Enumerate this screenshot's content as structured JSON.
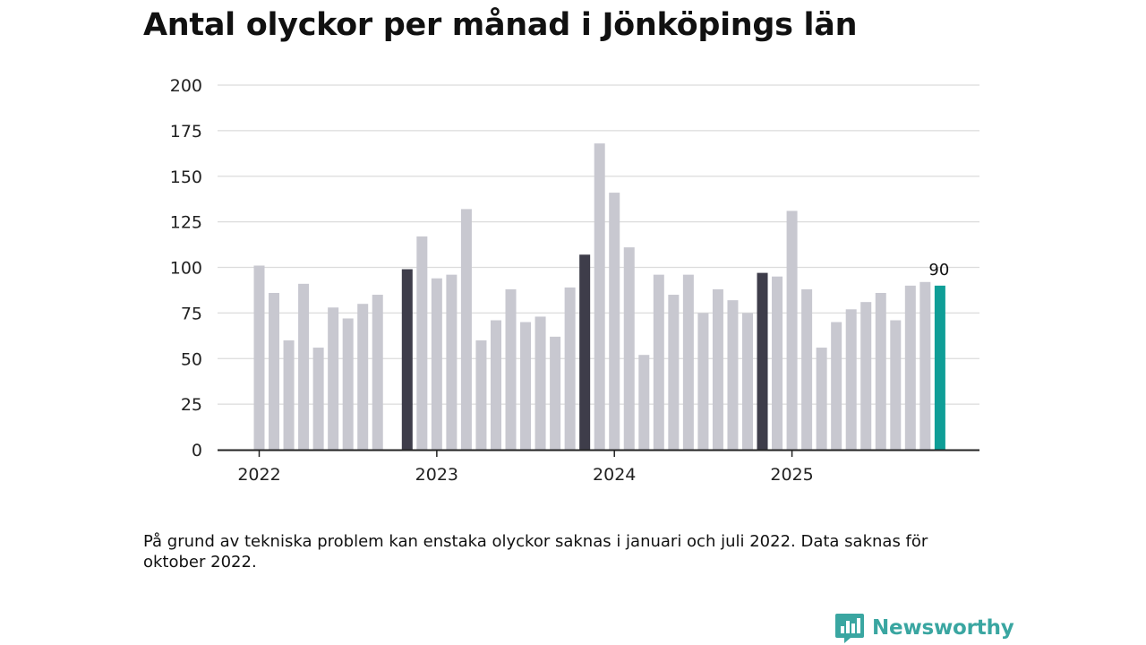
{
  "title": "Antal olyckor per månad i Jönköpings län",
  "footnote": "På grund av tekniska problem kan enstaka olyckor saknas i januari och juli 2022. Data saknas för oktober 2022.",
  "brand": {
    "name": "Newsworthy",
    "icon": "newsworthy-logo-icon",
    "color": "#3aa6a1"
  },
  "colors": {
    "default": "#c8c8d0",
    "november": "#3e3d4a",
    "latest": "#0f9e97",
    "grid": "#dcdcdc",
    "axis": "#222222"
  },
  "chart_data": {
    "type": "bar",
    "title": "Antal olyckor per månad i Jönköpings län",
    "xlabel": "",
    "ylabel": "",
    "ylim": [
      0,
      200
    ],
    "yticks": [
      "0",
      "25",
      "50",
      "75",
      "100",
      "125",
      "150",
      "175",
      "200"
    ],
    "xticks": [
      "2022",
      "2023",
      "2024",
      "2025"
    ],
    "grid": true,
    "series": [
      {
        "name": "Antal olyckor",
        "categories": [
          "2022-01",
          "2022-02",
          "2022-03",
          "2022-04",
          "2022-05",
          "2022-06",
          "2022-07",
          "2022-08",
          "2022-09",
          "2022-10",
          "2022-11",
          "2022-12",
          "2023-01",
          "2023-02",
          "2023-03",
          "2023-04",
          "2023-05",
          "2023-06",
          "2023-07",
          "2023-08",
          "2023-09",
          "2023-10",
          "2023-11",
          "2023-12",
          "2024-01",
          "2024-02",
          "2024-03",
          "2024-04",
          "2024-05",
          "2024-06",
          "2024-07",
          "2024-08",
          "2024-09",
          "2024-10",
          "2024-11",
          "2024-12",
          "2025-01",
          "2025-02",
          "2025-03",
          "2025-04",
          "2025-05",
          "2025-06",
          "2025-07",
          "2025-08",
          "2025-09",
          "2025-10",
          "2025-11"
        ],
        "values": [
          101,
          86,
          60,
          91,
          56,
          78,
          72,
          80,
          85,
          null,
          99,
          117,
          94,
          96,
          132,
          60,
          71,
          88,
          70,
          73,
          62,
          89,
          107,
          168,
          141,
          111,
          52,
          96,
          85,
          96,
          75,
          88,
          82,
          75,
          97,
          95,
          131,
          88,
          56,
          70,
          77,
          81,
          86,
          71,
          90,
          92,
          90
        ],
        "highlight_november": [
          10,
          22,
          34
        ],
        "latest_index": 46
      }
    ],
    "annotation": {
      "index": 46,
      "label": "90"
    }
  }
}
